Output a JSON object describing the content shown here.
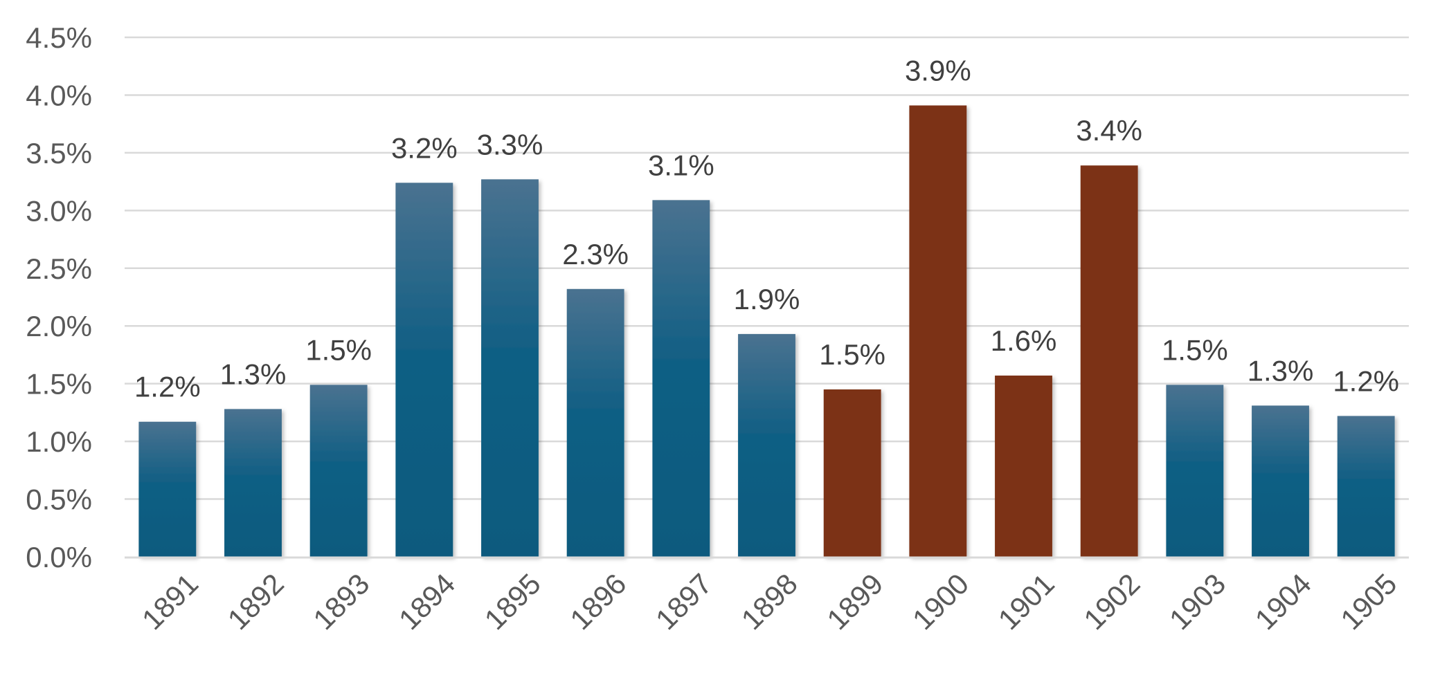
{
  "chart_data": {
    "type": "bar",
    "title": "",
    "xlabel": "",
    "ylabel": "",
    "categories": [
      "1891",
      "1892",
      "1893",
      "1894",
      "1895",
      "1896",
      "1897",
      "1898",
      "1899",
      "1900",
      "1901",
      "1902",
      "1903",
      "1904",
      "1905"
    ],
    "values": [
      1.17,
      1.28,
      1.49,
      3.24,
      3.27,
      2.32,
      3.09,
      1.93,
      1.45,
      3.91,
      1.57,
      3.39,
      1.49,
      1.31,
      1.22
    ],
    "data_labels": [
      "1.2%",
      "1.3%",
      "1.5%",
      "3.2%",
      "3.3%",
      "2.3%",
      "3.1%",
      "1.9%",
      "1.5%",
      "3.9%",
      "1.6%",
      "3.4%",
      "1.5%",
      "1.3%",
      "1.2%"
    ],
    "highlighted": [
      false,
      false,
      false,
      false,
      false,
      false,
      false,
      false,
      true,
      true,
      true,
      true,
      false,
      false,
      false
    ],
    "ylim": [
      0,
      4.5
    ],
    "yticks": [
      "0.0%",
      "0.5%",
      "1.0%",
      "1.5%",
      "2.0%",
      "2.5%",
      "3.0%",
      "3.5%",
      "4.0%",
      "4.5%"
    ],
    "grid": true,
    "legend": "none",
    "colors": {
      "bar_top": "#4a7290",
      "bar_bottom": "#0b5a7e",
      "bar_mid": "#115f84",
      "highlight": "#7b3212",
      "grid": "#d9d9d9"
    }
  }
}
